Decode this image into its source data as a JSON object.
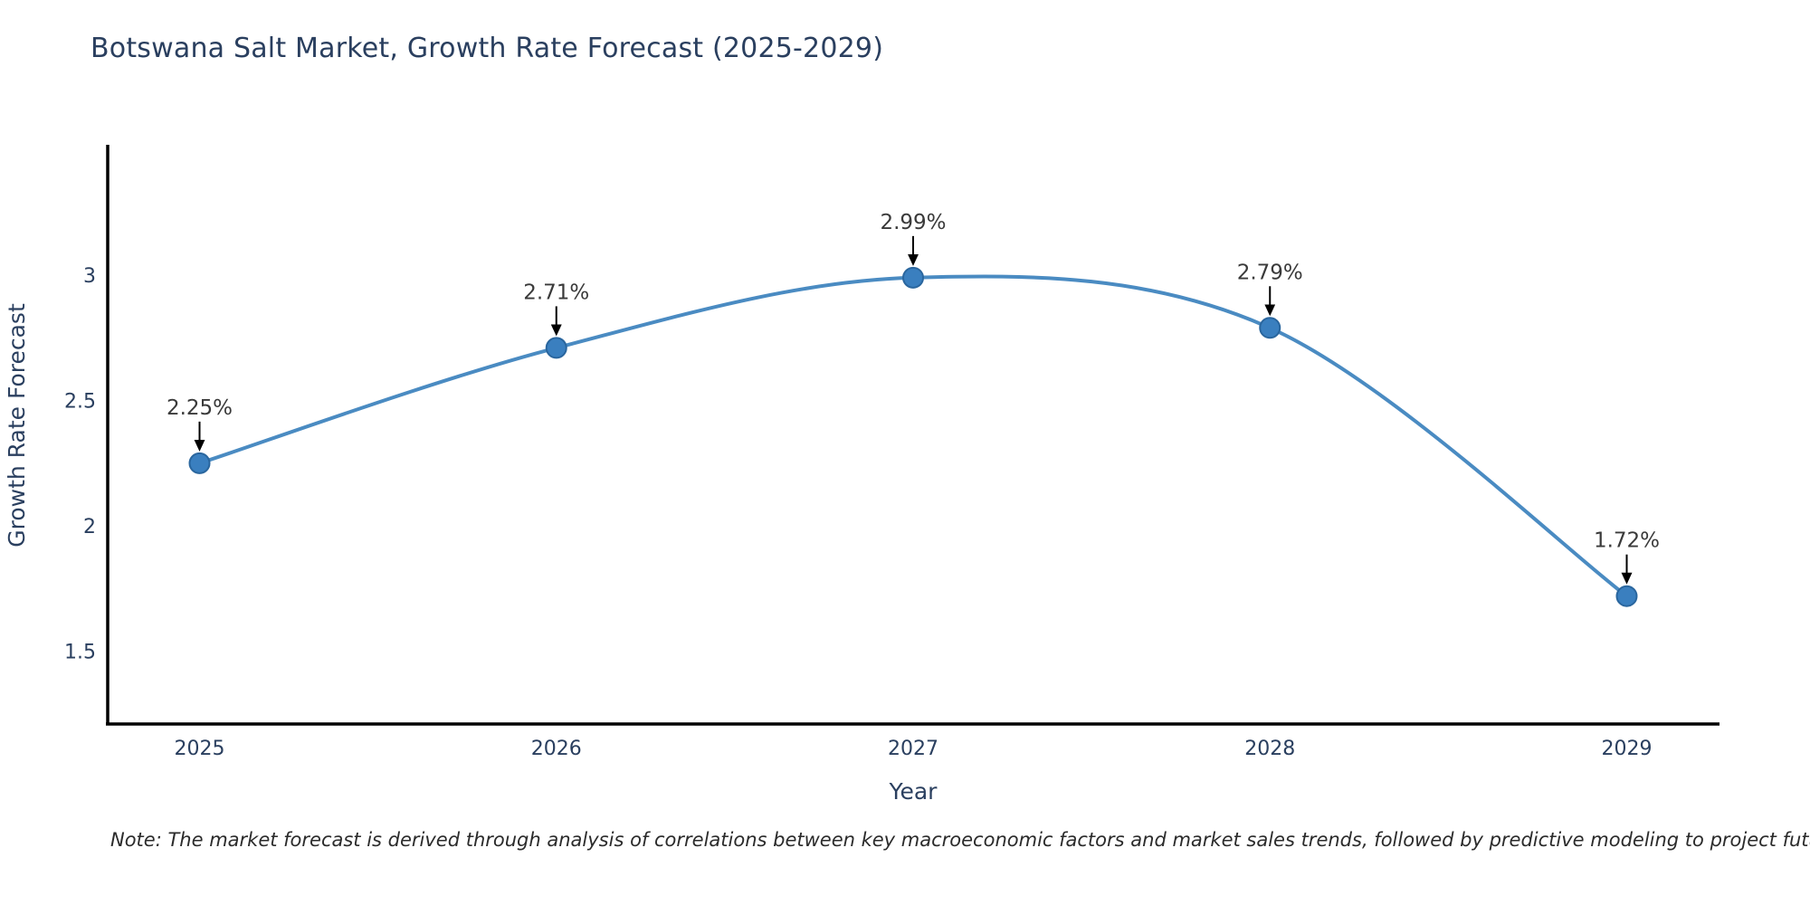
{
  "title": "Botswana Salt Market, Growth Rate Forecast (2025-2029)",
  "note": "Note: The market forecast is derived through analysis of correlations between key macroeconomic factors and market sales trends, followed by predictive modeling to project future sales",
  "chart_data": {
    "type": "line",
    "title": "Botswana Salt Market, Growth Rate Forecast (2025-2029)",
    "x": [
      2025,
      2026,
      2027,
      2028,
      2029
    ],
    "values": [
      2.25,
      2.71,
      2.99,
      2.79,
      1.72
    ],
    "point_labels": [
      "2.25%",
      "2.71%",
      "2.99%",
      "2.79%",
      "1.72%"
    ],
    "xtick_labels": [
      "2025",
      "2026",
      "2027",
      "2028",
      "2029"
    ],
    "yticks": [
      3,
      2.5,
      2,
      1.5
    ],
    "ytick_labels": [
      "3",
      "2.5",
      "2",
      "1.5"
    ],
    "xlabel": "Year",
    "ylabel": "Growth Rate Forecast",
    "xlim": [
      2024.74,
      2029.26
    ],
    "ylim": [
      1.21,
      3.52
    ],
    "grid": false,
    "legend": false,
    "line_shape": "spline",
    "colors": {
      "line": "#4a8bc2",
      "marker_fill": "#3a7fbf",
      "marker_edge": "#2a669e",
      "annotation_text": "#3a3a3a",
      "arrow": "#000000",
      "axis_spine": "#000000",
      "tick_text": "#2a3f5f",
      "axis_label_text": "#2a3f5f",
      "title_text": "#2a3f5f",
      "background": "#ffffff"
    }
  }
}
